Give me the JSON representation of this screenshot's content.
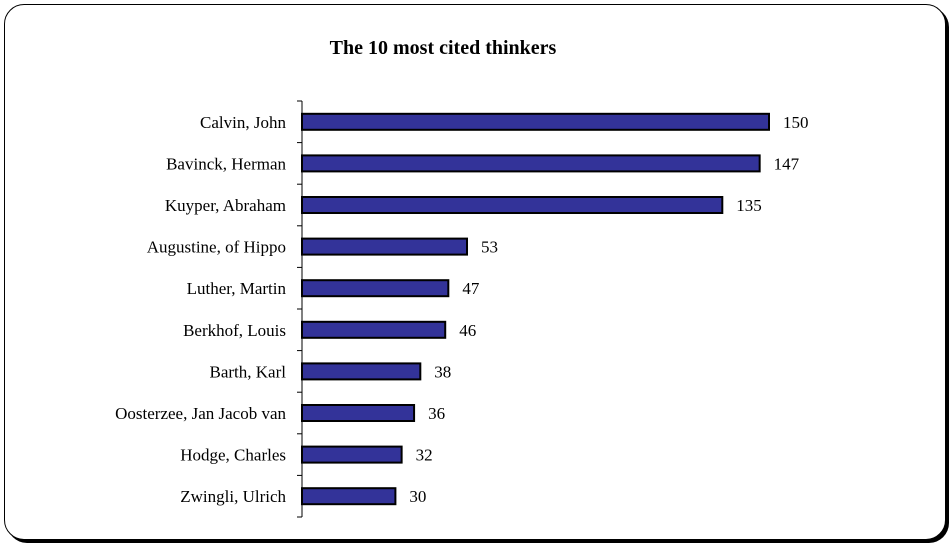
{
  "chart_data": {
    "type": "bar",
    "orientation": "horizontal",
    "title": "The 10 most cited thinkers",
    "xlabel": "",
    "ylabel": "",
    "categories": [
      "Calvin, John",
      "Bavinck, Herman",
      "Kuyper, Abraham",
      "Augustine, of Hippo",
      "Luther, Martin",
      "Berkhof, Louis",
      "Barth, Karl",
      "Oosterzee, Jan Jacob van",
      "Hodge, Charles",
      "Zwingli, Ulrich"
    ],
    "values": [
      150,
      147,
      135,
      53,
      47,
      46,
      38,
      36,
      32,
      30
    ],
    "xlim": [
      0,
      150
    ],
    "grid": false,
    "legend": "none",
    "bar_color": "#333399",
    "data_labels": true
  }
}
